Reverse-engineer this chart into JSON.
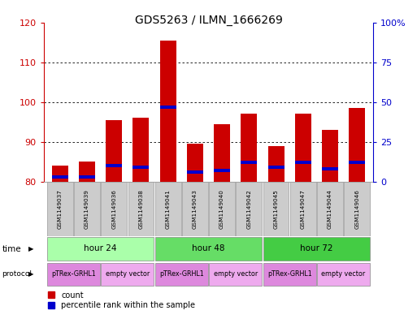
{
  "title": "GDS5263 / ILMN_1666269",
  "samples": [
    "GSM1149037",
    "GSM1149039",
    "GSM1149036",
    "GSM1149038",
    "GSM1149041",
    "GSM1149043",
    "GSM1149040",
    "GSM1149042",
    "GSM1149045",
    "GSM1149047",
    "GSM1149044",
    "GSM1149046"
  ],
  "count_values": [
    84,
    85,
    95.5,
    96,
    115.5,
    89.5,
    94.5,
    97,
    89,
    97,
    93,
    98.5
  ],
  "percentile_values": [
    3,
    3,
    10,
    9,
    47,
    6,
    7,
    12,
    9,
    12,
    8,
    12
  ],
  "ylim_left": [
    80,
    120
  ],
  "ylim_right": [
    0,
    100
  ],
  "yticks_left": [
    80,
    90,
    100,
    110,
    120
  ],
  "yticks_right": [
    0,
    25,
    50,
    75,
    100
  ],
  "ytick_labels_right": [
    "0",
    "25",
    "50",
    "75",
    "100%"
  ],
  "left_axis_color": "#cc0000",
  "right_axis_color": "#0000cc",
  "bar_width": 0.6,
  "count_color": "#cc0000",
  "percentile_color": "#0000cc",
  "time_groups": [
    {
      "label": "hour 24",
      "start": 0,
      "end": 3,
      "color": "#aaffaa"
    },
    {
      "label": "hour 48",
      "start": 4,
      "end": 7,
      "color": "#66dd66"
    },
    {
      "label": "hour 72",
      "start": 8,
      "end": 11,
      "color": "#44cc44"
    }
  ],
  "protocol_groups": [
    {
      "label": "pTRex-GRHL1",
      "start": 0,
      "end": 1,
      "color": "#dd88dd"
    },
    {
      "label": "empty vector",
      "start": 2,
      "end": 3,
      "color": "#eeaaee"
    },
    {
      "label": "pTRex-GRHL1",
      "start": 4,
      "end": 5,
      "color": "#dd88dd"
    },
    {
      "label": "empty vector",
      "start": 6,
      "end": 7,
      "color": "#eeaaee"
    },
    {
      "label": "pTRex-GRHL1",
      "start": 8,
      "end": 9,
      "color": "#dd88dd"
    },
    {
      "label": "empty vector",
      "start": 10,
      "end": 11,
      "color": "#eeaaee"
    }
  ],
  "background_color": "#ffffff",
  "sample_box_color": "#cccccc"
}
